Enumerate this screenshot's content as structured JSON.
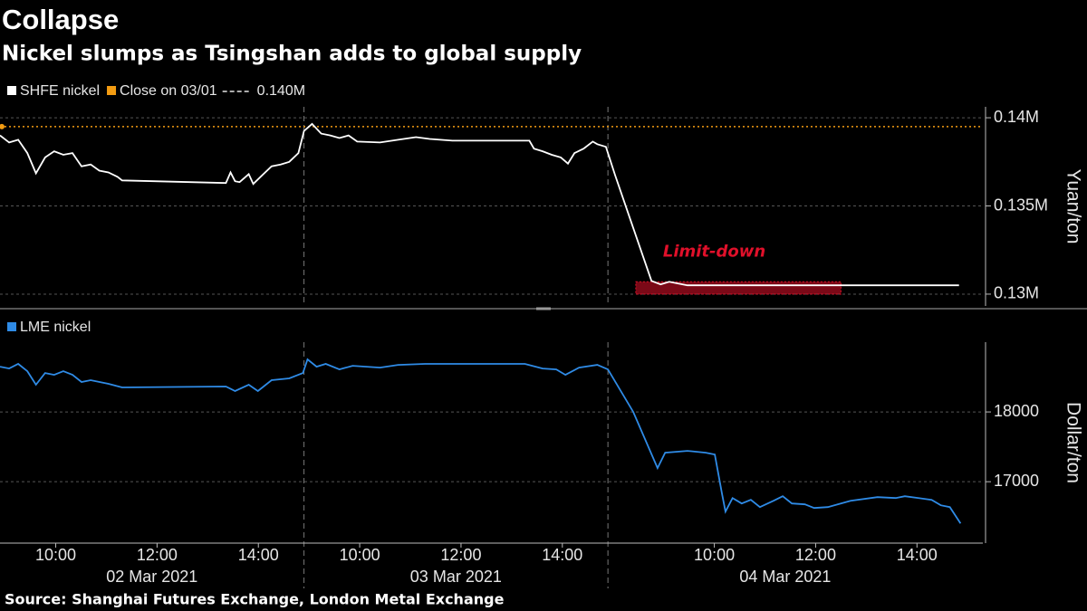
{
  "title": "Collapse",
  "subtitle": "Nickel slumps as Tsingshan adds to global supply",
  "source": "Source: Shanghai Futures Exchange, London Metal Exchange",
  "chart_data": [
    {
      "type": "line",
      "ylabel": "Yuan/ton",
      "grid": true,
      "xlim": [
        0,
        19.4
      ],
      "xdividers": [
        6,
        12
      ],
      "ylim": [
        129330,
        140620
      ],
      "yticks": [
        {
          "value": 130000,
          "label": "0.13M"
        },
        {
          "value": 135000,
          "label": "0.135M"
        },
        {
          "value": 140000,
          "label": "0.14M"
        }
      ],
      "series": [
        {
          "name": "SHFE nickel",
          "color": "#ffffff",
          "x": [
            0,
            0.18,
            0.36,
            0.54,
            0.71,
            0.89,
            1.07,
            1.25,
            1.43,
            1.61,
            1.79,
            1.96,
            2.14,
            2.32,
            2.41,
            3.04,
            4.46,
            4.55,
            4.64,
            4.73,
            4.91,
            5,
            5.18,
            5.36,
            5.54,
            5.71,
            5.89,
            6,
            6.16,
            6.34,
            6.52,
            6.7,
            6.88,
            7.05,
            7.5,
            7.86,
            8.21,
            8.48,
            8.93,
            10.45,
            10.54,
            10.71,
            10.89,
            11.07,
            11.21,
            11.34,
            11.52,
            11.7,
            11.79,
            11.96,
            12.14,
            12.5,
            12.86,
            13.04,
            13.21,
            13.57,
            16.61,
            18.93
          ],
          "values": [
            139000,
            138600,
            138750,
            138000,
            136850,
            137750,
            138100,
            137900,
            138000,
            137250,
            137350,
            137000,
            136900,
            136650,
            136450,
            136400,
            136300,
            136900,
            136400,
            136350,
            136800,
            136250,
            136750,
            137250,
            137350,
            137500,
            138000,
            139250,
            139650,
            139100,
            139000,
            138850,
            139000,
            138650,
            138600,
            138750,
            138900,
            138800,
            138700,
            138700,
            138250,
            138100,
            137900,
            137750,
            137400,
            138000,
            138250,
            138650,
            138500,
            138350,
            136750,
            133750,
            130750,
            130550,
            130700,
            130500,
            130500,
            130500
          ]
        }
      ],
      "reference_line": {
        "name": "Close on 03/01",
        "value": 139500,
        "value_label": "0.140M",
        "color": "#f39c12"
      },
      "highlight": {
        "label": "Limit-down",
        "color": "#e0102a",
        "x": [
          12.55,
          16.6
        ],
        "y": [
          130000,
          130700
        ]
      }
    },
    {
      "type": "line",
      "ylabel": "Dollar/ton",
      "grid": true,
      "xlim": [
        0,
        19.4
      ],
      "xdividers": [
        6,
        12
      ],
      "xticks": [
        {
          "value": 1.1,
          "label": "10:00"
        },
        {
          "value": 3.1,
          "label": "12:00"
        },
        {
          "value": 5.1,
          "label": "14:00"
        },
        {
          "value": 7.1,
          "label": "10:00"
        },
        {
          "value": 9.1,
          "label": "12:00"
        },
        {
          "value": 11.1,
          "label": "14:00"
        },
        {
          "value": 14.1,
          "label": "10:00"
        },
        {
          "value": 16.1,
          "label": "12:00"
        },
        {
          "value": 18.1,
          "label": "14:00"
        }
      ],
      "xgroups": [
        {
          "value": 3,
          "label": "02 Mar 2021"
        },
        {
          "value": 9,
          "label": "03 Mar 2021"
        },
        {
          "value": 15.5,
          "label": "04 Mar 2021"
        }
      ],
      "ylim": [
        16120,
        19000
      ],
      "yticks": [
        17000,
        18000
      ],
      "series": [
        {
          "name": "LME nickel",
          "color": "#2f8be6",
          "x": [
            0,
            0.18,
            0.36,
            0.54,
            0.71,
            0.89,
            1.07,
            1.25,
            1.43,
            1.61,
            1.79,
            2.14,
            2.41,
            4.46,
            4.64,
            4.91,
            5.09,
            5.36,
            5.71,
            5.98,
            6.07,
            6.25,
            6.43,
            6.7,
            6.96,
            7.5,
            7.86,
            8.39,
            10.36,
            10.71,
            10.98,
            11.16,
            11.43,
            11.79,
            12,
            12.5,
            12.98,
            13.13,
            13.57,
            13.93,
            14.11,
            14.25,
            14.32,
            14.46,
            14.64,
            14.82,
            15,
            15.27,
            15.45,
            15.63,
            15.89,
            16.07,
            16.34,
            16.79,
            17.32,
            17.68,
            17.86,
            18.39,
            18.57,
            18.75,
            18.96
          ],
          "values": [
            18649,
            18623,
            18688,
            18584,
            18390,
            18558,
            18532,
            18584,
            18532,
            18429,
            18455,
            18403,
            18351,
            18364,
            18299,
            18390,
            18299,
            18455,
            18481,
            18558,
            18753,
            18649,
            18688,
            18610,
            18662,
            18636,
            18675,
            18688,
            18688,
            18623,
            18610,
            18532,
            18636,
            18675,
            18610,
            18000,
            17195,
            17416,
            17442,
            17416,
            17390,
            16831,
            16571,
            16766,
            16688,
            16740,
            16636,
            16727,
            16792,
            16688,
            16675,
            16623,
            16636,
            16727,
            16779,
            16766,
            16792,
            16740,
            16662,
            16636,
            16403
          ]
        }
      ]
    }
  ]
}
